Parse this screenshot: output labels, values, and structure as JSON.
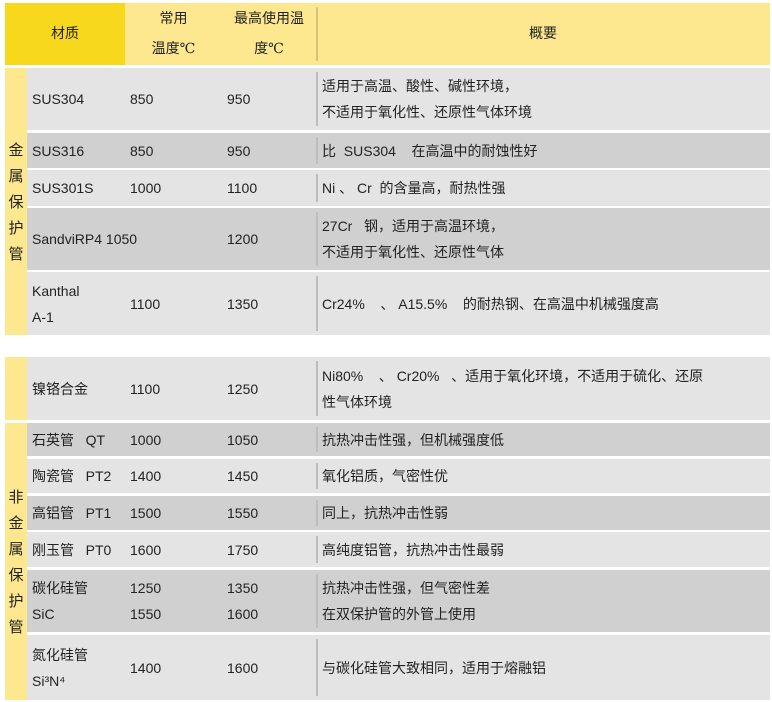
{
  "header": {
    "material": "材质",
    "normal_temp": [
      "常用",
      "温度℃"
    ],
    "max_temp": [
      "最高使用温",
      "度℃"
    ],
    "summary": "概要"
  },
  "groups": {
    "metal": "金属保护管",
    "nonmetal": "非金属保护管"
  },
  "rows": [
    {
      "material": [
        "SUS304"
      ],
      "normal": [
        "850"
      ],
      "max": [
        "950"
      ],
      "summary": [
        "适用于高温、酸性、碱性环境，",
        "不适用于氧化性、还原性气体环境"
      ]
    },
    {
      "material": [
        "SUS316"
      ],
      "normal": [
        "850"
      ],
      "max": [
        "950"
      ],
      "summary": [
        "比  SUS304    在高温中的耐蚀性好"
      ]
    },
    {
      "material": [
        "SUS301S"
      ],
      "normal": [
        "1000"
      ],
      "max": [
        "1100"
      ],
      "summary": [
        "Ni 、 Cr  的含量高，耐热性强"
      ]
    },
    {
      "material": [
        "SandviRP4 1050"
      ],
      "normal": [],
      "max": [
        "1200"
      ],
      "summary": [
        "27Cr   钢，适用于高温环境，",
        "不适用于氧化性、还原性气体"
      ]
    },
    {
      "material": [
        "Kanthal",
        "A-1"
      ],
      "normal": [
        "1100"
      ],
      "max": [
        "1350"
      ],
      "summary": [
        "Cr24%    、 A15.5%    的耐热钢、在高温中机械强度高"
      ]
    },
    {
      "material": [
        "镍铬合金"
      ],
      "normal": [
        "1100"
      ],
      "max": [
        "1250"
      ],
      "summary": [
        "Ni80%    、 Cr20%   、适用于氧化环境，不适用于硫化、还原",
        "性气体环境"
      ]
    },
    {
      "material": [
        "石英管   QT"
      ],
      "normal": [
        "1000"
      ],
      "max": [
        "1050"
      ],
      "summary": [
        "抗热冲击性强，但机械强度低"
      ]
    },
    {
      "material": [
        "陶瓷管   PT2"
      ],
      "normal": [
        "1400"
      ],
      "max": [
        "1450"
      ],
      "summary": [
        "氧化铝质，气密性优"
      ]
    },
    {
      "material": [
        "高铝管   PT1"
      ],
      "normal": [
        "1500"
      ],
      "max": [
        "1550"
      ],
      "summary": [
        "同上，抗热冲击性弱"
      ]
    },
    {
      "material": [
        "刚玉管   PT0"
      ],
      "normal": [
        "1600"
      ],
      "max": [
        "1750"
      ],
      "summary": [
        "高纯度铝管，抗热冲击性最弱"
      ]
    },
    {
      "material": [
        "碳化硅管",
        "SiC"
      ],
      "normal": [
        "1250",
        "1550"
      ],
      "max": [
        "1350",
        "1600"
      ],
      "summary": [
        "抗热冲击性强，但气密性差",
        "在双保护管的外管上使用"
      ]
    },
    {
      "material": [
        "氮化硅管",
        "Si³N⁴"
      ],
      "normal": [
        "1400"
      ],
      "max": [
        "1600"
      ],
      "summary": [
        "与碳化硅管大致相同，适用于熔融铝"
      ]
    }
  ],
  "colors": {
    "header_main": "#f8d81c",
    "header": "#fde88f",
    "row_light": "#e4e4e4",
    "row_dark": "#d0d0d0"
  }
}
